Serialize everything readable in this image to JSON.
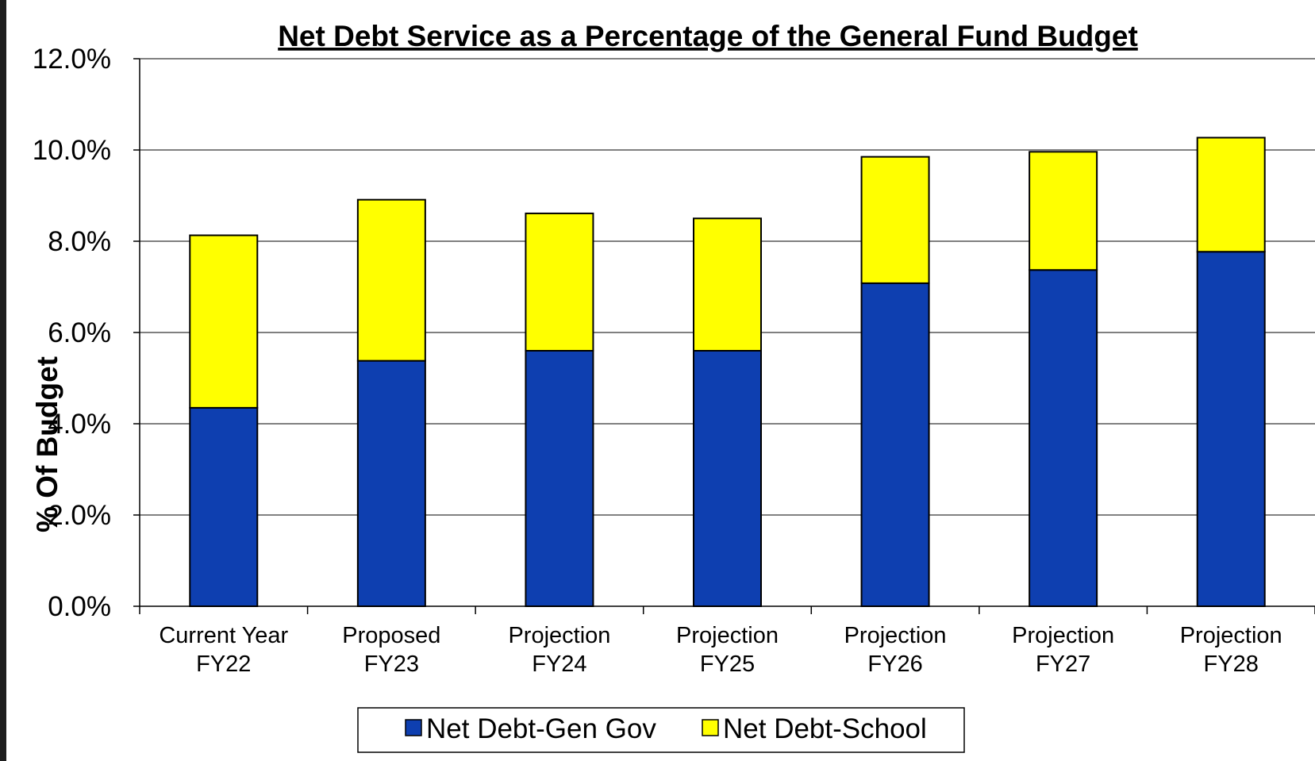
{
  "chart_data": {
    "type": "bar",
    "stacked": true,
    "title": "Net Debt Service as a Percentage of the General Fund Budget",
    "ylabel": "% Of Budget",
    "xlabel": "",
    "ylim": [
      0,
      12
    ],
    "yticks": [
      "0.0%",
      "2.0%",
      "4.0%",
      "6.0%",
      "8.0%",
      "10.0%",
      "12.0%"
    ],
    "grid": true,
    "legend_position": "bottom",
    "categories": [
      [
        "Current Year",
        "FY22"
      ],
      [
        "Proposed",
        "FY23"
      ],
      [
        "Projection",
        "FY24"
      ],
      [
        "Projection",
        "FY25"
      ],
      [
        "Projection",
        "FY26"
      ],
      [
        "Projection",
        "FY27"
      ],
      [
        "Projection",
        "FY28"
      ]
    ],
    "series": [
      {
        "name": "Net Debt-Gen Gov",
        "color": "#0e3fb0",
        "values": [
          4.35,
          5.38,
          5.6,
          5.6,
          7.08,
          7.37,
          7.77
        ]
      },
      {
        "name": "Net Debt-School",
        "color": "#ffff00",
        "values": [
          3.78,
          3.53,
          3.01,
          2.9,
          2.77,
          2.59,
          2.5
        ]
      }
    ]
  }
}
